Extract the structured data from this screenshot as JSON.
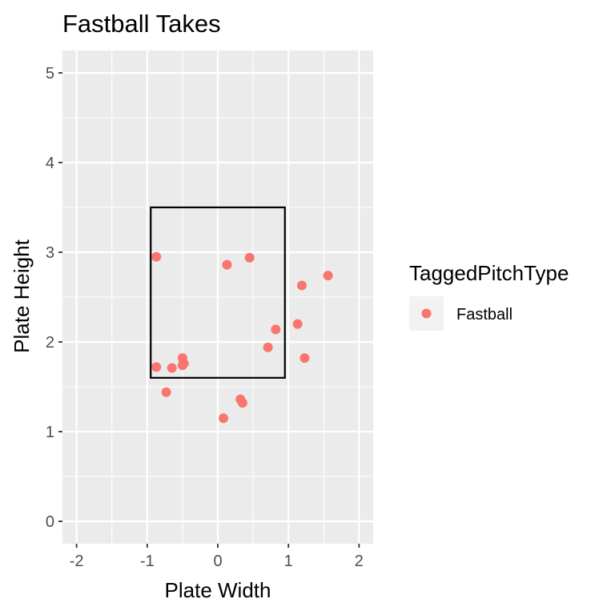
{
  "chart_data": {
    "type": "scatter",
    "title": "Fastball Takes",
    "xlabel": "Plate Width",
    "ylabel": "Plate Height",
    "xlim": [
      -2.2,
      2.2
    ],
    "ylim": [
      -0.25,
      5.25
    ],
    "x_ticks": [
      -2,
      -1,
      0,
      1,
      2
    ],
    "y_ticks": [
      0,
      1,
      2,
      3,
      4,
      5
    ],
    "x_tick_labels": [
      "-2",
      "-1",
      "0",
      "1",
      "2"
    ],
    "y_tick_labels": [
      "0",
      "1",
      "2",
      "3",
      "4",
      "5"
    ],
    "grid": true,
    "strike_zone": {
      "x_min": -0.95,
      "x_max": 0.95,
      "y_min": 1.6,
      "y_max": 3.5
    },
    "legend": {
      "title": "TaggedPitchType",
      "placement": "right"
    },
    "series": [
      {
        "name": "Fastball",
        "color": "#F8766D",
        "points": [
          {
            "x": -0.87,
            "y": 2.95
          },
          {
            "x": 0.13,
            "y": 2.86
          },
          {
            "x": 0.45,
            "y": 2.94
          },
          {
            "x": 1.56,
            "y": 2.74
          },
          {
            "x": 1.19,
            "y": 2.63
          },
          {
            "x": 1.13,
            "y": 2.2
          },
          {
            "x": 0.82,
            "y": 2.14
          },
          {
            "x": 0.71,
            "y": 1.94
          },
          {
            "x": 1.23,
            "y": 1.82
          },
          {
            "x": -0.5,
            "y": 1.82
          },
          {
            "x": -0.48,
            "y": 1.76
          },
          {
            "x": -0.5,
            "y": 1.74
          },
          {
            "x": -0.87,
            "y": 1.72
          },
          {
            "x": -0.65,
            "y": 1.71
          },
          {
            "x": -0.73,
            "y": 1.44
          },
          {
            "x": 0.32,
            "y": 1.36
          },
          {
            "x": 0.35,
            "y": 1.32
          },
          {
            "x": 0.08,
            "y": 1.15
          }
        ]
      }
    ]
  }
}
